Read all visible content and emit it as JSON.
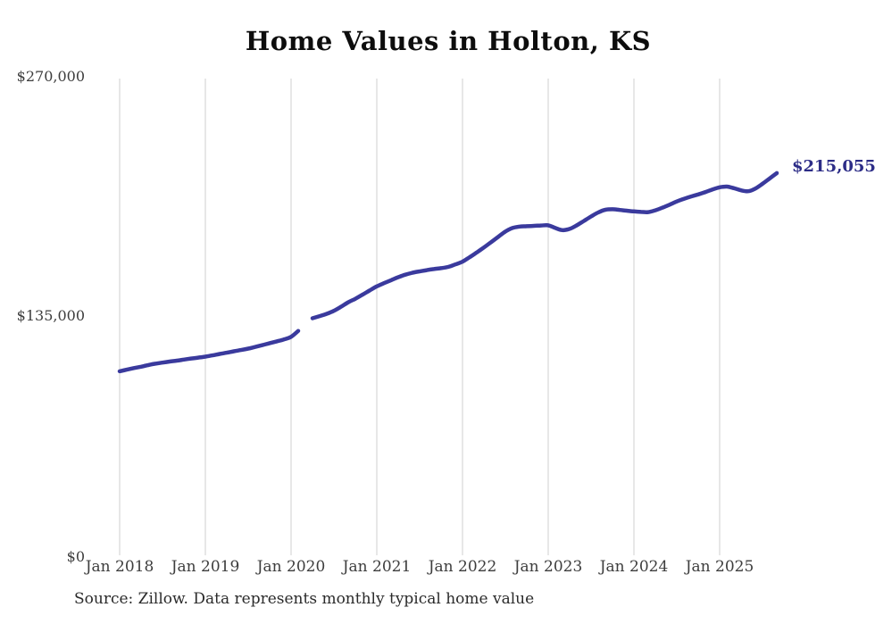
{
  "title": "Home Values in Holton, KS",
  "annotation": {
    "label": "$215,055"
  },
  "source_note": "Source: Zillow. Data represents monthly typical home value",
  "colors": {
    "line": "#3a3a9d",
    "annotation": "#2c2c87",
    "gridline": "#cfcfcf",
    "tick_label": "#3d3d3d",
    "title": "#0d0d0d"
  },
  "chart_data": {
    "type": "line",
    "title": "Home Values in Holton, KS",
    "xlabel": "",
    "ylabel": "",
    "ylim": [
      0,
      270000
    ],
    "grid": "vertical-only",
    "legend": "none",
    "y_ticks": [
      {
        "value": 0,
        "label": "$0"
      },
      {
        "value": 135000,
        "label": "$135,000"
      },
      {
        "value": 270000,
        "label": "$270,000"
      }
    ],
    "x_ticks": [
      {
        "year_index": 0,
        "label": "Jan 2018"
      },
      {
        "year_index": 1,
        "label": "Jan 2019"
      },
      {
        "year_index": 2,
        "label": "Jan 2020"
      },
      {
        "year_index": 3,
        "label": "Jan 2021"
      },
      {
        "year_index": 4,
        "label": "Jan 2022"
      },
      {
        "year_index": 5,
        "label": "Jan 2023"
      },
      {
        "year_index": 6,
        "label": "Jan 2024"
      },
      {
        "year_index": 7,
        "label": "Jan 2025"
      }
    ],
    "series": [
      {
        "name": "Monthly typical home value",
        "start_month": "2018-01",
        "gap_note": "null value = missing month (data gap early 2020)",
        "values": [
          103000,
          103900,
          104800,
          105600,
          106500,
          107300,
          107900,
          108500,
          109000,
          109600,
          110200,
          110700,
          111300,
          112000,
          112800,
          113500,
          114300,
          115000,
          115800,
          116800,
          117800,
          118900,
          119900,
          121000,
          122500,
          125800,
          null,
          133000,
          134200,
          135500,
          137200,
          139500,
          142000,
          144000,
          146300,
          148700,
          151000,
          152800,
          154500,
          156200,
          157600,
          158700,
          159500,
          160200,
          160800,
          161300,
          162000,
          163400,
          165000,
          167500,
          170200,
          173000,
          176000,
          179000,
          182000,
          184000,
          184800,
          185000,
          185200,
          185400,
          185500,
          184000,
          182800,
          183500,
          185500,
          188000,
          190500,
          192800,
          194300,
          194600,
          194200,
          193800,
          193400,
          193100,
          193000,
          194000,
          195500,
          197200,
          199000,
          200500,
          201800,
          203000,
          204300,
          205800,
          207000,
          207400,
          206500,
          205300,
          204800,
          206300,
          209000,
          212000,
          215055
        ]
      }
    ],
    "end_label": "$215,055",
    "end_value": 215055
  }
}
